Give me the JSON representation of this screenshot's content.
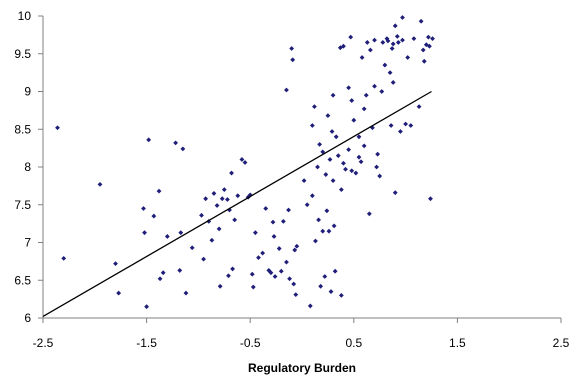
{
  "chart_data": {
    "type": "scatter",
    "title": "",
    "xlabel": "Regulatory Burden",
    "ylabel": "",
    "xlim": [
      -2.5,
      2.5
    ],
    "ylim": [
      6,
      10
    ],
    "x_ticks": [
      -2.5,
      -1.5,
      -0.5,
      0.5,
      1.5,
      2.5
    ],
    "x_tick_labels": [
      "-2.5",
      "-1.5",
      "-0.5",
      "0.5",
      "1.5",
      "2.5"
    ],
    "y_ticks": [
      6,
      6.5,
      7,
      7.5,
      8,
      8.5,
      9,
      9.5,
      10
    ],
    "y_tick_labels": [
      "6",
      "6.5",
      "7",
      "7.5",
      "8",
      "8.5",
      "9",
      "9.5",
      "10"
    ],
    "grid": false,
    "legend": "none",
    "marker_color": "#1f1f7a",
    "trendline_color": "#000000",
    "trendline": {
      "x": [
        -2.5,
        1.25
      ],
      "y": [
        6.02,
        9.0
      ]
    },
    "points": [
      {
        "x": -2.36,
        "y": 8.52
      },
      {
        "x": -2.3,
        "y": 6.79
      },
      {
        "x": -1.95,
        "y": 7.77
      },
      {
        "x": -1.8,
        "y": 6.72
      },
      {
        "x": -1.77,
        "y": 6.33
      },
      {
        "x": -1.53,
        "y": 7.45
      },
      {
        "x": -1.52,
        "y": 7.13
      },
      {
        "x": -1.5,
        "y": 6.15
      },
      {
        "x": -1.48,
        "y": 8.36
      },
      {
        "x": -1.43,
        "y": 7.35
      },
      {
        "x": -1.38,
        "y": 7.68
      },
      {
        "x": -1.37,
        "y": 6.52
      },
      {
        "x": -1.34,
        "y": 6.6
      },
      {
        "x": -1.3,
        "y": 7.08
      },
      {
        "x": -1.22,
        "y": 8.32
      },
      {
        "x": -1.18,
        "y": 6.63
      },
      {
        "x": -1.17,
        "y": 7.13
      },
      {
        "x": -1.15,
        "y": 8.24
      },
      {
        "x": -1.12,
        "y": 6.33
      },
      {
        "x": -1.06,
        "y": 6.93
      },
      {
        "x": -0.97,
        "y": 7.36
      },
      {
        "x": -0.95,
        "y": 6.78
      },
      {
        "x": -0.93,
        "y": 7.58
      },
      {
        "x": -0.9,
        "y": 7.28
      },
      {
        "x": -0.87,
        "y": 7.03
      },
      {
        "x": -0.85,
        "y": 7.65
      },
      {
        "x": -0.82,
        "y": 7.49
      },
      {
        "x": -0.8,
        "y": 7.18
      },
      {
        "x": -0.79,
        "y": 6.42
      },
      {
        "x": -0.77,
        "y": 7.58
      },
      {
        "x": -0.75,
        "y": 7.7
      },
      {
        "x": -0.72,
        "y": 7.57
      },
      {
        "x": -0.71,
        "y": 6.56
      },
      {
        "x": -0.7,
        "y": 7.43
      },
      {
        "x": -0.68,
        "y": 7.92
      },
      {
        "x": -0.67,
        "y": 6.65
      },
      {
        "x": -0.65,
        "y": 7.3
      },
      {
        "x": -0.62,
        "y": 7.62
      },
      {
        "x": -0.58,
        "y": 8.1
      },
      {
        "x": -0.55,
        "y": 8.06
      },
      {
        "x": -0.52,
        "y": 7.6
      },
      {
        "x": -0.5,
        "y": 7.63
      },
      {
        "x": -0.48,
        "y": 6.58
      },
      {
        "x": -0.47,
        "y": 6.41
      },
      {
        "x": -0.45,
        "y": 7.13
      },
      {
        "x": -0.42,
        "y": 6.8
      },
      {
        "x": -0.38,
        "y": 6.86
      },
      {
        "x": -0.35,
        "y": 7.45
      },
      {
        "x": -0.32,
        "y": 6.63
      },
      {
        "x": -0.3,
        "y": 6.6
      },
      {
        "x": -0.28,
        "y": 7.27
      },
      {
        "x": -0.27,
        "y": 7.08
      },
      {
        "x": -0.26,
        "y": 6.55
      },
      {
        "x": -0.22,
        "y": 6.92
      },
      {
        "x": -0.2,
        "y": 6.62
      },
      {
        "x": -0.18,
        "y": 7.28
      },
      {
        "x": -0.15,
        "y": 9.02
      },
      {
        "x": -0.15,
        "y": 6.74
      },
      {
        "x": -0.13,
        "y": 7.43
      },
      {
        "x": -0.12,
        "y": 6.52
      },
      {
        "x": -0.1,
        "y": 9.57
      },
      {
        "x": -0.09,
        "y": 9.42
      },
      {
        "x": -0.08,
        "y": 6.45
      },
      {
        "x": -0.07,
        "y": 6.9
      },
      {
        "x": -0.06,
        "y": 6.31
      },
      {
        "x": -0.05,
        "y": 6.95
      },
      {
        "x": 0.02,
        "y": 7.82
      },
      {
        "x": 0.05,
        "y": 7.5
      },
      {
        "x": 0.08,
        "y": 6.16
      },
      {
        "x": 0.1,
        "y": 8.55
      },
      {
        "x": 0.1,
        "y": 7.62
      },
      {
        "x": 0.12,
        "y": 8.8
      },
      {
        "x": 0.13,
        "y": 7.02
      },
      {
        "x": 0.15,
        "y": 8.0
      },
      {
        "x": 0.16,
        "y": 7.3
      },
      {
        "x": 0.17,
        "y": 8.3
      },
      {
        "x": 0.18,
        "y": 6.42
      },
      {
        "x": 0.2,
        "y": 8.2
      },
      {
        "x": 0.2,
        "y": 7.15
      },
      {
        "x": 0.22,
        "y": 6.55
      },
      {
        "x": 0.23,
        "y": 7.9
      },
      {
        "x": 0.24,
        "y": 7.42
      },
      {
        "x": 0.25,
        "y": 8.68
      },
      {
        "x": 0.26,
        "y": 7.15
      },
      {
        "x": 0.27,
        "y": 8.1
      },
      {
        "x": 0.28,
        "y": 6.35
      },
      {
        "x": 0.29,
        "y": 8.47
      },
      {
        "x": 0.3,
        "y": 7.82
      },
      {
        "x": 0.3,
        "y": 8.95
      },
      {
        "x": 0.31,
        "y": 7.22
      },
      {
        "x": 0.32,
        "y": 6.62
      },
      {
        "x": 0.33,
        "y": 8.4
      },
      {
        "x": 0.35,
        "y": 8.15
      },
      {
        "x": 0.37,
        "y": 9.58
      },
      {
        "x": 0.38,
        "y": 7.7
      },
      {
        "x": 0.38,
        "y": 6.3
      },
      {
        "x": 0.4,
        "y": 8.05
      },
      {
        "x": 0.4,
        "y": 9.6
      },
      {
        "x": 0.42,
        "y": 7.97
      },
      {
        "x": 0.45,
        "y": 8.23
      },
      {
        "x": 0.45,
        "y": 9.05
      },
      {
        "x": 0.47,
        "y": 9.72
      },
      {
        "x": 0.48,
        "y": 7.95
      },
      {
        "x": 0.48,
        "y": 8.88
      },
      {
        "x": 0.5,
        "y": 8.62
      },
      {
        "x": 0.52,
        "y": 7.92
      },
      {
        "x": 0.55,
        "y": 8.4
      },
      {
        "x": 0.55,
        "y": 8.13
      },
      {
        "x": 0.57,
        "y": 8.07
      },
      {
        "x": 0.58,
        "y": 9.45
      },
      {
        "x": 0.6,
        "y": 8.28
      },
      {
        "x": 0.6,
        "y": 8.77
      },
      {
        "x": 0.62,
        "y": 8.95
      },
      {
        "x": 0.63,
        "y": 9.65
      },
      {
        "x": 0.65,
        "y": 7.38
      },
      {
        "x": 0.66,
        "y": 9.55
      },
      {
        "x": 0.68,
        "y": 8.52
      },
      {
        "x": 0.7,
        "y": 9.07
      },
      {
        "x": 0.7,
        "y": 9.68
      },
      {
        "x": 0.72,
        "y": 8.0
      },
      {
        "x": 0.73,
        "y": 8.17
      },
      {
        "x": 0.75,
        "y": 7.88
      },
      {
        "x": 0.77,
        "y": 9.0
      },
      {
        "x": 0.78,
        "y": 9.65
      },
      {
        "x": 0.8,
        "y": 9.35
      },
      {
        "x": 0.82,
        "y": 9.7
      },
      {
        "x": 0.83,
        "y": 9.67
      },
      {
        "x": 0.85,
        "y": 9.25
      },
      {
        "x": 0.86,
        "y": 8.55
      },
      {
        "x": 0.87,
        "y": 9.57
      },
      {
        "x": 0.88,
        "y": 9.12
      },
      {
        "x": 0.88,
        "y": 9.63
      },
      {
        "x": 0.9,
        "y": 9.87
      },
      {
        "x": 0.9,
        "y": 7.66
      },
      {
        "x": 0.92,
        "y": 9.73
      },
      {
        "x": 0.93,
        "y": 9.65
      },
      {
        "x": 0.95,
        "y": 8.47
      },
      {
        "x": 0.97,
        "y": 9.68
      },
      {
        "x": 0.97,
        "y": 9.98
      },
      {
        "x": 1.0,
        "y": 8.57
      },
      {
        "x": 1.02,
        "y": 9.45
      },
      {
        "x": 1.05,
        "y": 8.55
      },
      {
        "x": 1.08,
        "y": 9.7
      },
      {
        "x": 1.13,
        "y": 8.8
      },
      {
        "x": 1.15,
        "y": 9.93
      },
      {
        "x": 1.17,
        "y": 9.55
      },
      {
        "x": 1.18,
        "y": 9.4
      },
      {
        "x": 1.2,
        "y": 9.62
      },
      {
        "x": 1.22,
        "y": 9.72
      },
      {
        "x": 1.23,
        "y": 9.6
      },
      {
        "x": 1.24,
        "y": 7.58
      },
      {
        "x": 1.26,
        "y": 9.7
      }
    ]
  }
}
